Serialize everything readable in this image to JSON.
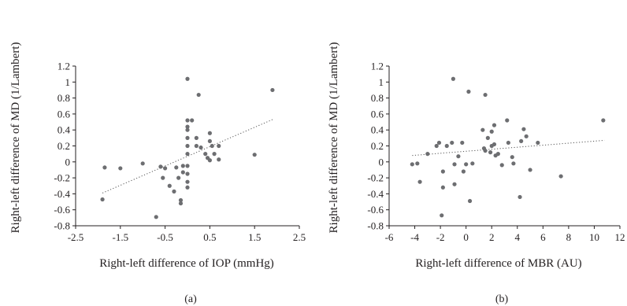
{
  "chart_data": [
    {
      "type": "scatter",
      "panel_label": "(a)",
      "xlabel": "Right-left difference of IOP (mmHg)",
      "ylabel": "Right-left difference of MD (1/Lambert)",
      "xlim": [
        -2.5,
        2.5
      ],
      "ylim": [
        -0.8,
        1.2
      ],
      "xticks": [
        "-2.5",
        "-1.5",
        "-0.5",
        "0.5",
        "1.5",
        "2.5"
      ],
      "yticks": [
        "1.2",
        "1",
        "0.8",
        "0.6",
        "0.4",
        "0.2",
        "0",
        "-0.2",
        "-0.4",
        "-0.6",
        "-0.8"
      ],
      "grid": false,
      "trendline": {
        "style": "dotted",
        "x": [
          -1.9,
          1.9
        ],
        "y": [
          -0.39,
          0.53
        ]
      },
      "points": [
        [
          -1.9,
          -0.47
        ],
        [
          -1.85,
          -0.07
        ],
        [
          -1.5,
          -0.08
        ],
        [
          -1.0,
          -0.02
        ],
        [
          -0.7,
          -0.69
        ],
        [
          -0.6,
          -0.06
        ],
        [
          -0.55,
          -0.2
        ],
        [
          -0.5,
          -0.08
        ],
        [
          -0.4,
          -0.3
        ],
        [
          -0.3,
          -0.37
        ],
        [
          -0.25,
          -0.07
        ],
        [
          -0.2,
          -0.2
        ],
        [
          -0.15,
          -0.48
        ],
        [
          -0.15,
          -0.52
        ],
        [
          -0.1,
          -0.05
        ],
        [
          -0.1,
          -0.13
        ],
        [
          0.0,
          1.04
        ],
        [
          0.0,
          0.52
        ],
        [
          0.0,
          0.44
        ],
        [
          0.0,
          0.4
        ],
        [
          0.0,
          0.3
        ],
        [
          0.0,
          0.2
        ],
        [
          0.0,
          0.1
        ],
        [
          0.0,
          -0.05
        ],
        [
          0.0,
          -0.15
        ],
        [
          0.0,
          -0.25
        ],
        [
          0.0,
          -0.32
        ],
        [
          0.1,
          0.52
        ],
        [
          0.2,
          0.3
        ],
        [
          0.2,
          0.2
        ],
        [
          0.25,
          0.84
        ],
        [
          0.3,
          0.18
        ],
        [
          0.4,
          0.1
        ],
        [
          0.45,
          0.05
        ],
        [
          0.5,
          0.36
        ],
        [
          0.5,
          0.26
        ],
        [
          0.5,
          0.02
        ],
        [
          0.55,
          0.2
        ],
        [
          0.6,
          0.1
        ],
        [
          0.7,
          0.2
        ],
        [
          0.7,
          0.03
        ],
        [
          1.5,
          0.09
        ],
        [
          1.9,
          0.9
        ]
      ]
    },
    {
      "type": "scatter",
      "panel_label": "(b)",
      "xlabel": "Right-left difference of MBR (AU)",
      "ylabel": "Right-left difference of MD (1/Lambert)",
      "xlim": [
        -6,
        12
      ],
      "ylim": [
        -0.8,
        1.2
      ],
      "xticks": [
        "-6",
        "-4",
        "-2",
        "0",
        "2",
        "4",
        "6",
        "8",
        "10",
        "12"
      ],
      "yticks": [
        "1.2",
        "1",
        "0.8",
        "0.6",
        "0.4",
        "0.2",
        "0",
        "-0.2",
        "-0.4",
        "-0.6",
        "-0.8"
      ],
      "grid": false,
      "trendline": {
        "style": "dotted",
        "x": [
          -4.2,
          10.8
        ],
        "y": [
          0.08,
          0.27
        ]
      },
      "points": [
        [
          -4.2,
          -0.03
        ],
        [
          -3.8,
          -0.02
        ],
        [
          -3.6,
          -0.25
        ],
        [
          -3.0,
          0.1
        ],
        [
          -2.3,
          0.2
        ],
        [
          -2.1,
          0.24
        ],
        [
          -1.9,
          -0.67
        ],
        [
          -1.8,
          -0.12
        ],
        [
          -1.8,
          -0.32
        ],
        [
          -1.5,
          0.2
        ],
        [
          -1.1,
          0.24
        ],
        [
          -1.0,
          1.04
        ],
        [
          -0.9,
          -0.03
        ],
        [
          -0.9,
          -0.28
        ],
        [
          -0.6,
          0.07
        ],
        [
          -0.3,
          0.24
        ],
        [
          -0.2,
          -0.12
        ],
        [
          0.0,
          -0.03
        ],
        [
          0.2,
          0.88
        ],
        [
          0.3,
          -0.49
        ],
        [
          0.5,
          -0.02
        ],
        [
          1.3,
          0.4
        ],
        [
          1.4,
          0.17
        ],
        [
          1.5,
          0.84
        ],
        [
          1.5,
          0.14
        ],
        [
          1.7,
          0.3
        ],
        [
          1.9,
          0.12
        ],
        [
          2.0,
          0.2
        ],
        [
          2.0,
          0.38
        ],
        [
          2.2,
          0.22
        ],
        [
          2.2,
          0.46
        ],
        [
          2.3,
          0.08
        ],
        [
          2.5,
          0.1
        ],
        [
          2.8,
          -0.04
        ],
        [
          3.2,
          0.52
        ],
        [
          3.3,
          0.24
        ],
        [
          3.6,
          0.06
        ],
        [
          3.7,
          -0.02
        ],
        [
          4.2,
          -0.44
        ],
        [
          4.3,
          0.26
        ],
        [
          4.5,
          0.41
        ],
        [
          4.7,
          0.32
        ],
        [
          5.0,
          -0.1
        ],
        [
          5.6,
          0.24
        ],
        [
          7.4,
          -0.18
        ],
        [
          10.7,
          0.52
        ]
      ]
    }
  ]
}
